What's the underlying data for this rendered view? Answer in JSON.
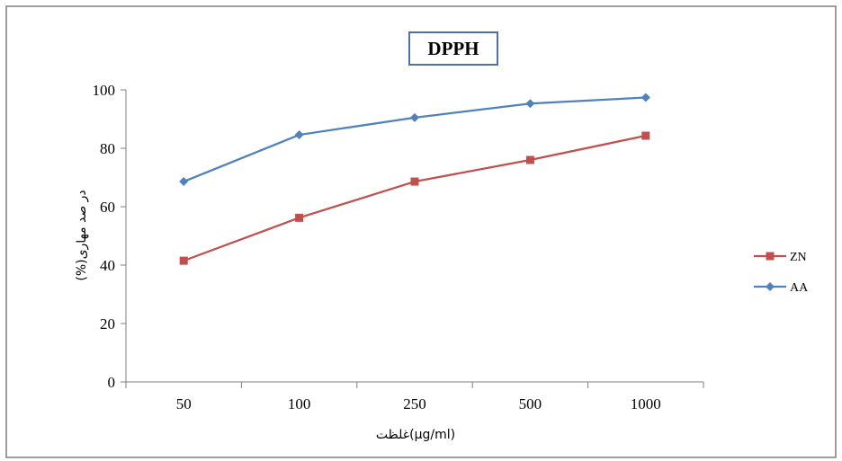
{
  "chart_data": {
    "type": "line",
    "title": "DPPH",
    "xlabel": "غلظت(µg/ml)",
    "ylabel": "در صد مهاری(%)",
    "categories": [
      "50",
      "100",
      "250",
      "500",
      "1000"
    ],
    "ylim": [
      0,
      100
    ],
    "yticks": [
      0,
      20,
      40,
      60,
      80,
      100
    ],
    "grid": false,
    "legend_position": "right",
    "series": [
      {
        "name": "ZN",
        "values": [
          41.5,
          56.2,
          68.6,
          76.0,
          84.3
        ],
        "color": "#c0504d",
        "marker": "square"
      },
      {
        "name": "AA",
        "values": [
          68.6,
          84.6,
          90.5,
          95.3,
          97.4
        ],
        "color": "#4f81bd",
        "marker": "diamond"
      }
    ]
  }
}
